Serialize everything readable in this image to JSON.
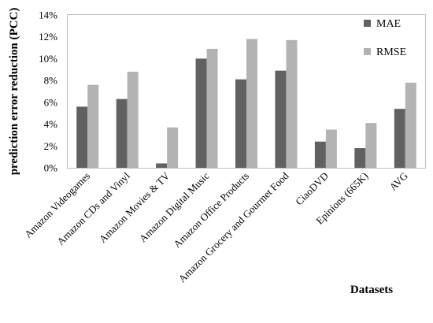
{
  "chart_data": {
    "type": "bar",
    "categories": [
      "Amazon Videogames",
      "Amazon CDs and Vinyl",
      "Amazon Movies & TV",
      "Amazon Digital Music",
      "Amazon Office Products",
      "Amazon Grocery and Gourmet Food",
      "CiaoDVD",
      "Epinions (665K)",
      "AVG"
    ],
    "series": [
      {
        "name": "MAE",
        "color": "#616161",
        "values": [
          5.6,
          6.3,
          0.4,
          10.0,
          8.1,
          8.9,
          2.4,
          1.8,
          5.4
        ]
      },
      {
        "name": "RMSE",
        "color": "#b3b3b3",
        "values": [
          7.6,
          8.8,
          3.7,
          10.9,
          11.8,
          11.7,
          3.5,
          4.1,
          7.8
        ]
      }
    ],
    "ylabel": "prediction  error  reduction (PCC)",
    "xlabel": "Datasets",
    "ylim": [
      0,
      14
    ],
    "yticks": [
      "0%",
      "2%",
      "4%",
      "6%",
      "8%",
      "10%",
      "12%",
      "14%"
    ],
    "grid": false,
    "legend": "top-right"
  }
}
